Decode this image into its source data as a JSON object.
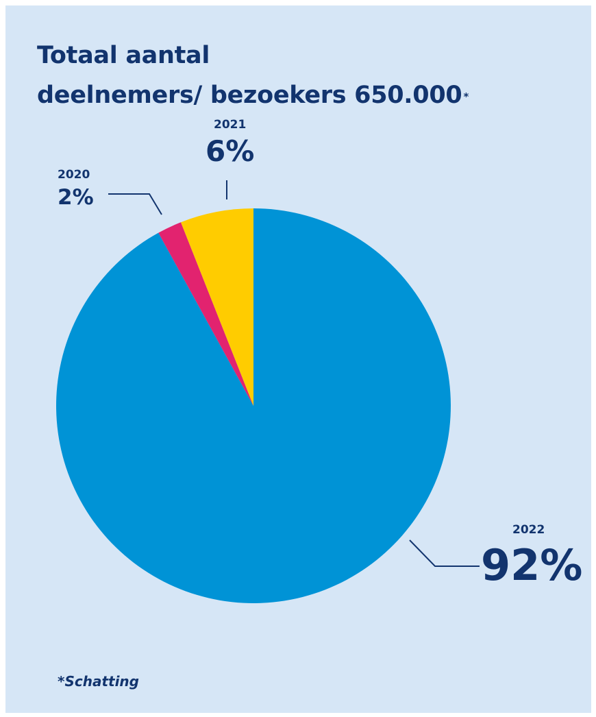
{
  "chart_data": {
    "type": "pie",
    "title_lines": [
      "Totaal aantal",
      "deelnemers/ bezoekers 650.000"
    ],
    "title_marker": "*",
    "slices": [
      {
        "category": "2022",
        "value": 92,
        "label": "92%",
        "color": "#0093d6"
      },
      {
        "category": "2020",
        "value": 2,
        "label": "2%",
        "color": "#e2236f"
      },
      {
        "category": "2021",
        "value": 6,
        "label": "6%",
        "color": "#ffcc00"
      }
    ],
    "footnote": "*Schatting"
  },
  "colors": {
    "background": "#d6e6f6",
    "text": "#12346e",
    "leader_line": "#12346e"
  }
}
